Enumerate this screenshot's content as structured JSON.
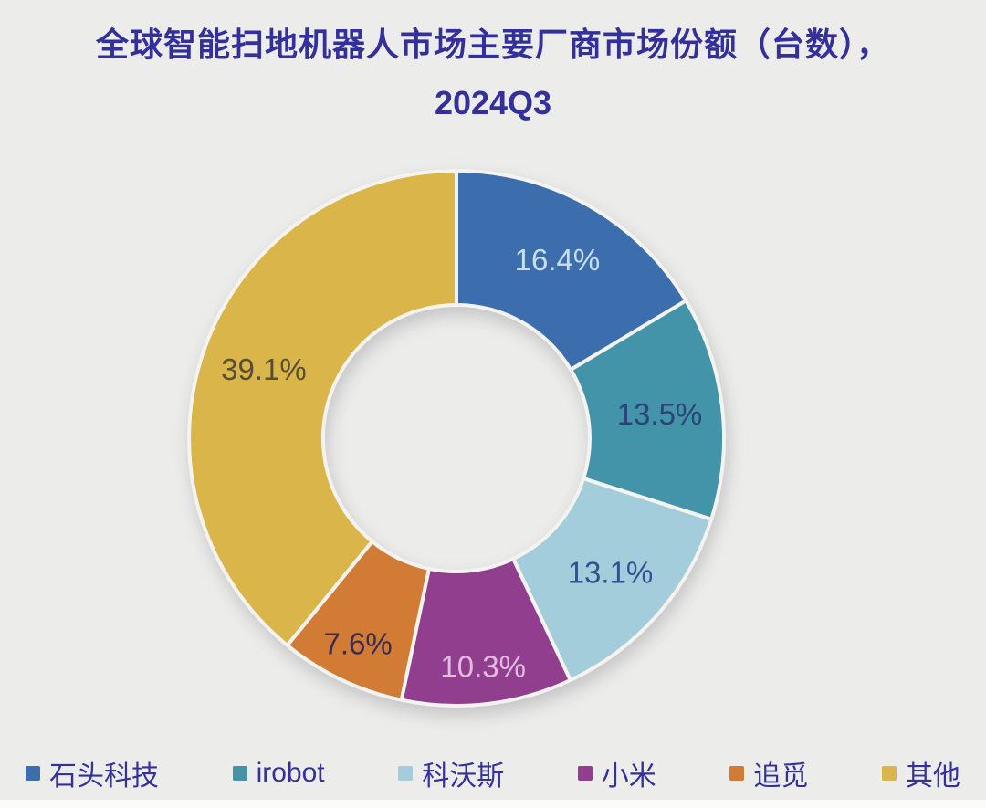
{
  "title": {
    "line1": "全球智能扫地机器人市场主要厂商市场份额（台数），",
    "line2": "2024Q3"
  },
  "colors": {
    "background": "#ECECEB",
    "title_text": "#34309B",
    "legend_text": "#34319B",
    "separator": "#F4F3F0"
  },
  "chart_data": {
    "type": "pie",
    "subtype": "donut",
    "title": "全球智能扫地机器人市场主要厂商市场份额（台数），2024Q3",
    "categories": [
      "石头科技",
      "irobot",
      "科沃斯",
      "小米",
      "追觅",
      "其他"
    ],
    "values": [
      16.4,
      13.5,
      13.1,
      10.3,
      7.6,
      39.1
    ],
    "labels": [
      "16.4%",
      "13.5%",
      "13.1%",
      "10.3%",
      "7.6%",
      "39.1%"
    ],
    "unit": "%",
    "start_angle_deg": 0,
    "direction": "clockwise",
    "inner_radius_ratio": 0.5,
    "legend_position": "bottom",
    "slice_colors": [
      "#3C6EAD",
      "#4394A9",
      "#A3CDDA",
      "#913E8E",
      "#D27B35",
      "#D9B54A"
    ],
    "label_colors": [
      "#C9DFF0",
      "#2C4379",
      "#33518F",
      "#E0BCDF",
      "#3A2B50",
      "#564F35"
    ]
  }
}
